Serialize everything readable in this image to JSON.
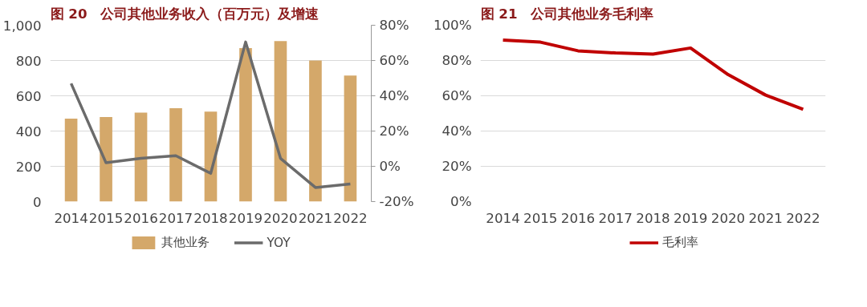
{
  "chart_data": [
    {
      "type": "bar",
      "title": "图 20　公司其他业务收入（百万元）及增速",
      "categories": [
        "2014",
        "2015",
        "2016",
        "2017",
        "2018",
        "2019",
        "2020",
        "2021",
        "2022"
      ],
      "series": [
        {
          "name": "其他业务",
          "type": "bar",
          "color": "#d4a86a",
          "values": [
            470,
            480,
            505,
            530,
            510,
            870,
            910,
            800,
            715
          ]
        },
        {
          "name": "YOY",
          "type": "line",
          "axis": "y2",
          "color": "#6b6b6b",
          "values": [
            47,
            2,
            4.5,
            6,
            -4,
            70.5,
            4.5,
            -12,
            -10
          ]
        }
      ],
      "ylim": [
        0,
        1000
      ],
      "yticks": [
        0,
        200,
        400,
        600,
        800,
        {
          "value": 1000,
          "label": "1,000"
        }
      ],
      "y2lim": [
        -20,
        80
      ],
      "y2ticks": [
        {
          "value": -20,
          "label": "-20%"
        },
        {
          "value": 0,
          "label": "0%"
        },
        {
          "value": 20,
          "label": "20%"
        },
        {
          "value": 40,
          "label": "40%"
        },
        {
          "value": 60,
          "label": "60%"
        },
        {
          "value": 80,
          "label": "80%"
        }
      ],
      "grid": "y",
      "legend": "bottom"
    },
    {
      "type": "line",
      "title": "图 21　公司其他业务毛利率",
      "categories": [
        "2014",
        "2015",
        "2016",
        "2017",
        "2018",
        "2019",
        "2020",
        "2021",
        "2022"
      ],
      "series": [
        {
          "name": "毛利率",
          "color": "#c00000",
          "values": [
            91.6,
            90.4,
            85.5,
            84.3,
            83.6,
            87.1,
            72,
            60.4,
            52.3
          ]
        }
      ],
      "ylim": [
        0,
        100
      ],
      "yticks": [
        {
          "value": 0,
          "label": "0%"
        },
        {
          "value": 20,
          "label": "20%"
        },
        {
          "value": 40,
          "label": "40%"
        },
        {
          "value": 60,
          "label": "60%"
        },
        {
          "value": 80,
          "label": "80%"
        },
        {
          "value": 100,
          "label": "100%"
        }
      ],
      "grid": "y",
      "legend": "bottom"
    }
  ]
}
